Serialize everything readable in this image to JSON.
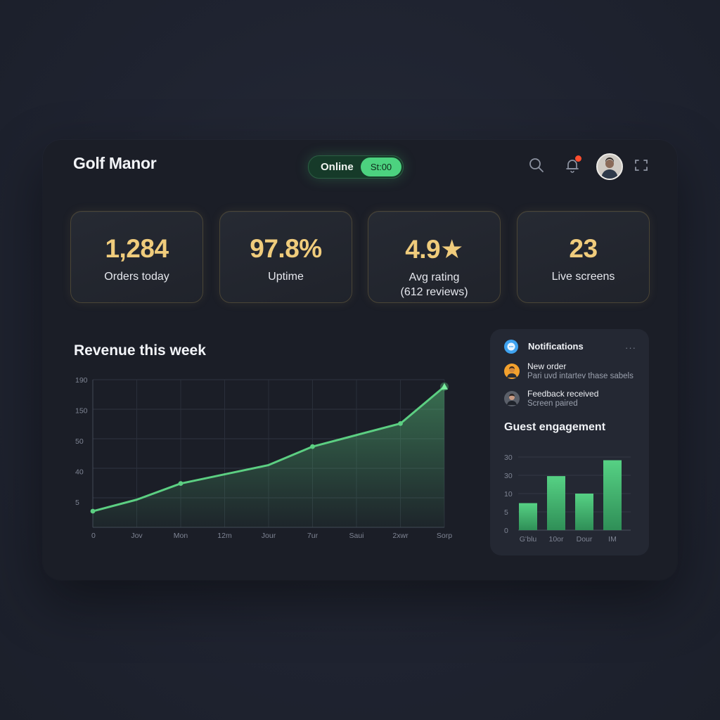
{
  "app": {
    "title": "Golf Manor"
  },
  "status": {
    "label": "Online",
    "pill": "St:00"
  },
  "icons": {
    "search": "search-icon",
    "notifications": "bell-icon",
    "expand": "expand-icon",
    "notification_badge_color": "#ff4d2e"
  },
  "kpis": [
    {
      "value": "1,284",
      "label": "Orders today"
    },
    {
      "value": "97.8%",
      "label": "Uptime"
    },
    {
      "value": "4.9★",
      "label": "Avg rating",
      "sub": "(612 reviews)"
    },
    {
      "value": "23",
      "label": "Live screens"
    }
  ],
  "colors": {
    "accent": "#4cd27f",
    "kpi_value": "#f0cc7c",
    "panel": "#1b1e27"
  },
  "notifications": {
    "title": "Notifications",
    "more": "···",
    "items": [
      {
        "title": "New order",
        "subtitle": "Pari uvd intartev thase sabels"
      },
      {
        "title": "Feedback received",
        "subtitle": "Screen paired"
      }
    ]
  },
  "revenue": {
    "title": "Revenue this week"
  },
  "engagement": {
    "title": "Guest engagement"
  },
  "chart_data": [
    {
      "type": "area",
      "title": "Revenue this week",
      "x": [
        "0",
        "Jov",
        "Mon",
        "12m",
        "Jour",
        "7ur",
        "Saui",
        "2xwr",
        "Sorp"
      ],
      "y_ticks": [
        "5",
        "40",
        "50",
        "150",
        "190"
      ],
      "values": [
        0.7,
        1.2,
        1.9,
        2.3,
        2.7,
        3.5,
        4.0,
        4.5,
        6.1
      ],
      "color": "#5ccf82",
      "grid": true
    },
    {
      "type": "bar",
      "title": "Guest engagement",
      "categories": [
        "Gʻblu",
        "10or",
        "Dour",
        "IM"
      ],
      "y_ticks": [
        "0",
        "5",
        "10",
        "30",
        "30"
      ],
      "values": [
        1.7,
        3.4,
        2.3,
        4.4
      ],
      "color": "#4cbf74",
      "grid": true
    }
  ]
}
